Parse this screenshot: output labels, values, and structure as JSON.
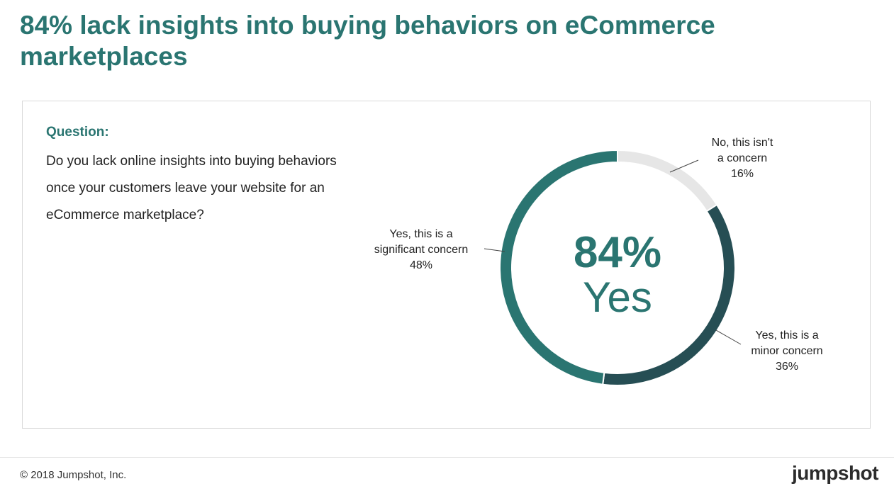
{
  "title": "84% lack insights into buying behaviors on eCommerce marketplaces",
  "question": {
    "label": "Question:",
    "text": "Do you lack online insights into buying behaviors once your customers leave your website for an eCommerce marketplace?"
  },
  "chart_data": {
    "type": "pie",
    "style": "donut",
    "center": {
      "value": "84%",
      "label": "Yes"
    },
    "slices": [
      {
        "label_lines": [
          "No, this isn't",
          "a concern"
        ],
        "value": 16,
        "value_label": "16%",
        "color": "#e6e6e6"
      },
      {
        "label_lines": [
          "Yes, this is a",
          "minor concern"
        ],
        "value": 36,
        "value_label": "36%",
        "color": "#264e54"
      },
      {
        "label_lines": [
          "Yes, this is a",
          "significant concern"
        ],
        "value": 48,
        "value_label": "48%",
        "color": "#2a7571"
      }
    ]
  },
  "footer": {
    "copyright": "© 2018 Jumpshot, Inc.",
    "logo": "jumpshot"
  }
}
